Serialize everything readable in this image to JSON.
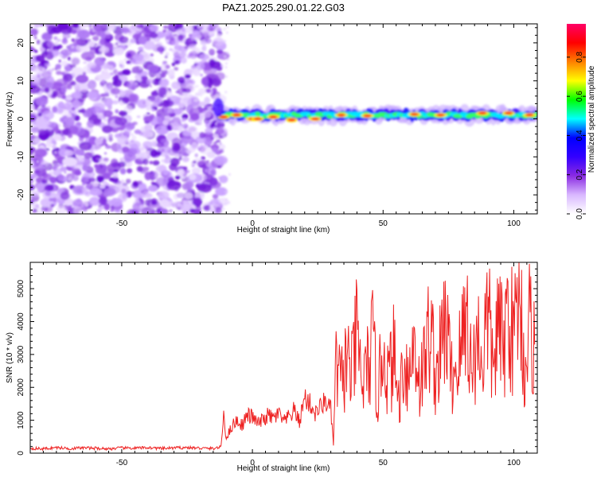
{
  "title": "PAZ1.2025.290.01.22.G03",
  "chart_data": [
    {
      "type": "heatmap",
      "name": "spectrogram",
      "xlabel": "Height of straight line (km)",
      "ylabel": "Frequency (Hz)",
      "xlim": [
        -85,
        109
      ],
      "ylim": [
        -25,
        25
      ],
      "xticks": [
        -50,
        0,
        50,
        100
      ],
      "xtick_labels": [
        "-50",
        "0",
        "50",
        "100"
      ],
      "yticks": [
        -20,
        -10,
        0,
        10,
        20
      ],
      "ytick_labels": [
        "-20",
        "-10",
        "0",
        "10",
        "20"
      ],
      "noise_region_x": [
        -85,
        -11
      ],
      "signal_band": {
        "x_start": -12,
        "x_end": 109,
        "center_freq_hz": 1,
        "width_hz": 3
      },
      "colorbar": {
        "label": "Normalized spectral amplitude",
        "range": [
          0.0,
          0.97
        ],
        "ticks": [
          0.0,
          0.2,
          0.4,
          0.6,
          0.8
        ],
        "tick_labels": [
          "0.0",
          "0.2",
          "0.4",
          "0.6",
          "0.8"
        ],
        "colors": [
          "#ffffff",
          "#d9b8ff",
          "#8a2be2",
          "#3300ff",
          "#0000ff",
          "#00ffff",
          "#00ff00",
          "#ffff00",
          "#ff8000",
          "#ff0000",
          "#ff0066"
        ]
      }
    },
    {
      "type": "line",
      "name": "snr",
      "xlabel": "Height of straight line (km)",
      "ylabel": "SNR (10 * v/v)",
      "xlim": [
        -85,
        109
      ],
      "ylim": [
        0,
        5800
      ],
      "xticks": [
        -50,
        0,
        50,
        100
      ],
      "xtick_labels": [
        "-50",
        "0",
        "50",
        "100"
      ],
      "yticks": [
        0,
        1000,
        2000,
        3000,
        4000,
        5000
      ],
      "ytick_labels": [
        "0",
        "1000",
        "2000",
        "3000",
        "4000",
        "5000"
      ],
      "color": "#ee2222",
      "series": [
        {
          "name": "SNR",
          "x": [
            -85,
            -80,
            -75,
            -70,
            -65,
            -60,
            -55,
            -50,
            -45,
            -40,
            -35,
            -30,
            -25,
            -20,
            -15,
            -12,
            -11,
            -10,
            -8,
            -6,
            -4,
            -2,
            0,
            2,
            4,
            6,
            8,
            10,
            12,
            14,
            16,
            18,
            20,
            22,
            24,
            26,
            28,
            30,
            31,
            32,
            34,
            36,
            38,
            40,
            42,
            44,
            46,
            48,
            50,
            52,
            54,
            56,
            58,
            60,
            62,
            64,
            66,
            68,
            70,
            72,
            74,
            76,
            78,
            80,
            82,
            84,
            86,
            88,
            90,
            92,
            94,
            96,
            98,
            100,
            102,
            104,
            106,
            108
          ],
          "y": [
            150,
            130,
            170,
            140,
            160,
            150,
            130,
            160,
            150,
            170,
            140,
            160,
            170,
            150,
            140,
            190,
            1200,
            450,
            800,
            1000,
            850,
            1150,
            1100,
            900,
            1000,
            1150,
            1050,
            1200,
            950,
            1100,
            1300,
            950,
            1700,
            1500,
            1200,
            1400,
            1600,
            1300,
            300,
            2600,
            2100,
            2900,
            2400,
            3600,
            2000,
            2600,
            3300,
            1700,
            3400,
            2200,
            3000,
            1600,
            2900,
            2300,
            3500,
            2100,
            2800,
            3900,
            2400,
            3000,
            4100,
            2300,
            2600,
            3200,
            4400,
            2300,
            3600,
            2800,
            4300,
            2600,
            3900,
            3100,
            4600,
            3200,
            5800,
            2400,
            3900,
            3300
          ]
        }
      ]
    }
  ]
}
